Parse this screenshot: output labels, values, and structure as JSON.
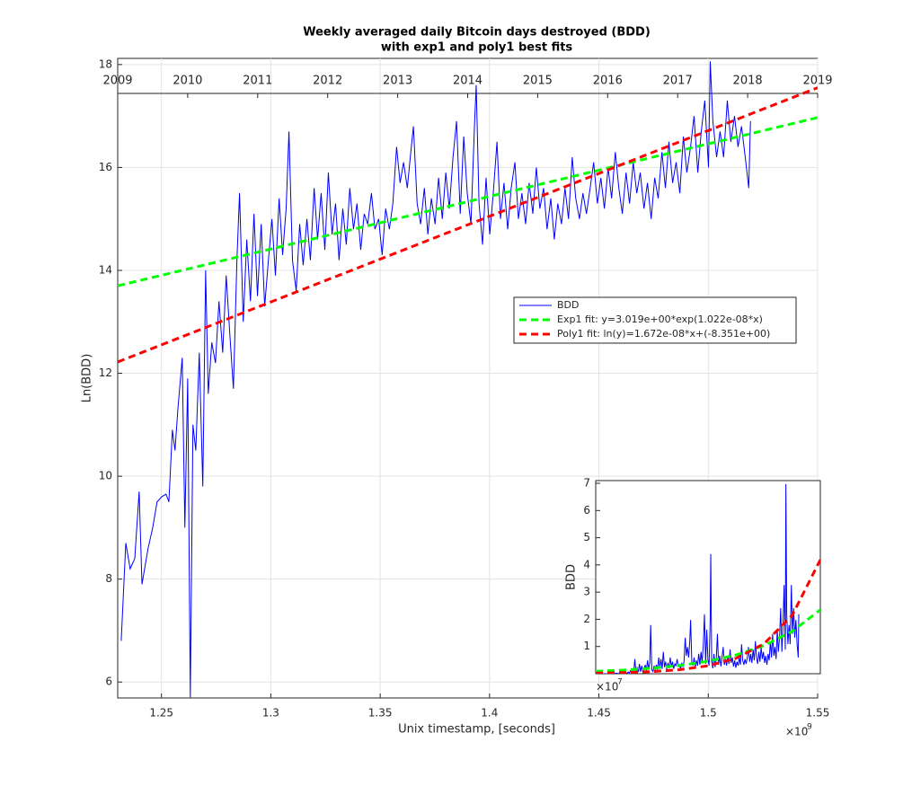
{
  "chart_data": [
    {
      "type": "line",
      "title": [
        "Weekly averaged daily Bitcoin days destroyed (BDD)",
        "with exp1 and poly1 best fits"
      ],
      "xlabel": "Unix timestamp, [seconds]",
      "ylabel": "Ln(BDD)",
      "x_multiplier": {
        "base": "×10",
        "exponent": "9"
      },
      "xlim": [
        1.23,
        1.55
      ],
      "xticks": [
        1.25,
        1.3,
        1.35,
        1.4,
        1.45,
        1.5,
        1.55
      ],
      "ylim": [
        5.69,
        18.12
      ],
      "yticks": [
        6,
        8,
        10,
        12,
        14,
        16,
        18
      ],
      "grid": true,
      "legend": "east",
      "top_axis": {
        "xlim": [
          2009,
          2019
        ],
        "xticks": [
          2009,
          2010,
          2011,
          2012,
          2013,
          2014,
          2015,
          2016,
          2017,
          2018,
          2019
        ]
      },
      "series": [
        {
          "name": "BDD",
          "color": "#0000ff",
          "dash": "solid",
          "x": [
            1.2316,
            1.2337,
            1.2357,
            1.2378,
            1.2398,
            1.2411,
            1.2439,
            1.246,
            1.248,
            1.2501,
            1.2521,
            1.2534,
            1.255,
            1.2562,
            1.2575,
            1.2595,
            1.2607,
            1.262,
            1.2632,
            1.2644,
            1.2657,
            1.2673,
            1.2689,
            1.2702,
            1.2714,
            1.273,
            1.2747,
            1.2763,
            1.278,
            1.2796,
            1.2812,
            1.2829,
            1.2845,
            1.2857,
            1.2874,
            1.289,
            1.2907,
            1.2923,
            1.2939,
            1.2956,
            1.2972,
            1.2989,
            1.3005,
            1.3021,
            1.3038,
            1.3054,
            1.307,
            1.3083,
            1.3099,
            1.3116,
            1.3132,
            1.3148,
            1.3165,
            1.3181,
            1.3198,
            1.3214,
            1.323,
            1.3247,
            1.3263,
            1.328,
            1.3296,
            1.3312,
            1.3329,
            1.3345,
            1.3361,
            1.3378,
            1.3394,
            1.3411,
            1.3427,
            1.3443,
            1.346,
            1.3476,
            1.3493,
            1.3509,
            1.3525,
            1.3542,
            1.3558,
            1.3575,
            1.3591,
            1.3607,
            1.3624,
            1.364,
            1.3652,
            1.3669,
            1.3685,
            1.3702,
            1.3718,
            1.3734,
            1.3751,
            1.3767,
            1.3784,
            1.38,
            1.3816,
            1.3833,
            1.3849,
            1.3866,
            1.3882,
            1.3898,
            1.3915,
            1.3931,
            1.3939,
            1.3952,
            1.3968,
            1.3984,
            1.4001,
            1.4017,
            1.4034,
            1.405,
            1.4066,
            1.4083,
            1.4099,
            1.4116,
            1.4132,
            1.4148,
            1.4165,
            1.4181,
            1.4198,
            1.4214,
            1.423,
            1.4247,
            1.4263,
            1.428,
            1.4296,
            1.4312,
            1.4329,
            1.4345,
            1.4361,
            1.4378,
            1.4394,
            1.4411,
            1.4427,
            1.4443,
            1.446,
            1.4476,
            1.4493,
            1.4509,
            1.4525,
            1.4542,
            1.4558,
            1.4575,
            1.4591,
            1.4607,
            1.4624,
            1.464,
            1.4657,
            1.4673,
            1.4689,
            1.4706,
            1.4722,
            1.4739,
            1.4755,
            1.4771,
            1.4788,
            1.4804,
            1.482,
            1.4837,
            1.4853,
            1.487,
            1.4886,
            1.4902,
            1.4919,
            1.4935,
            1.4952,
            1.4968,
            1.4984,
            1.5001,
            1.5009,
            1.5021,
            1.5038,
            1.5054,
            1.507,
            1.5087,
            1.5103,
            1.512,
            1.5136,
            1.5152,
            1.5169,
            1.5185,
            1.5193
          ],
          "values": [
            6.8,
            8.7,
            8.2,
            8.4,
            9.7,
            7.9,
            8.6,
            9.0,
            9.5,
            9.6,
            9.65,
            9.5,
            10.9,
            10.5,
            11.3,
            12.3,
            9.0,
            11.9,
            5.7,
            11.0,
            10.5,
            12.4,
            9.8,
            14.0,
            11.6,
            12.6,
            12.2,
            13.4,
            12.4,
            13.9,
            12.8,
            11.7,
            14.2,
            15.5,
            13.0,
            14.6,
            13.4,
            15.1,
            13.5,
            14.9,
            13.3,
            14.2,
            15.0,
            13.9,
            15.4,
            14.3,
            15.2,
            16.7,
            14.2,
            13.6,
            14.9,
            14.1,
            15.0,
            14.2,
            15.6,
            14.6,
            15.5,
            14.4,
            15.9,
            14.7,
            15.3,
            14.2,
            15.2,
            14.5,
            15.6,
            14.8,
            15.3,
            14.4,
            15.1,
            14.9,
            15.5,
            14.8,
            15.0,
            14.3,
            15.2,
            14.8,
            15.3,
            16.4,
            15.7,
            16.1,
            15.6,
            16.3,
            16.8,
            15.3,
            14.9,
            15.6,
            14.7,
            15.4,
            14.9,
            15.8,
            15.0,
            15.9,
            15.2,
            16.2,
            16.9,
            15.1,
            16.6,
            15.5,
            14.9,
            16.8,
            17.6,
            15.3,
            14.5,
            15.8,
            14.7,
            15.5,
            16.5,
            15.0,
            15.7,
            14.8,
            15.6,
            16.1,
            15.0,
            15.5,
            14.9,
            15.7,
            15.1,
            16.0,
            15.2,
            15.6,
            14.8,
            15.4,
            14.6,
            15.3,
            14.9,
            15.6,
            15.0,
            16.2,
            15.4,
            15.0,
            15.5,
            15.1,
            15.6,
            16.1,
            15.3,
            15.8,
            15.2,
            16.0,
            15.4,
            16.3,
            15.6,
            15.1,
            15.9,
            15.3,
            16.1,
            15.5,
            15.9,
            15.2,
            15.7,
            15.0,
            15.8,
            15.4,
            16.3,
            15.6,
            16.5,
            15.7,
            16.1,
            15.5,
            16.6,
            15.9,
            16.4,
            17.0,
            15.9,
            16.7,
            17.3,
            16.0,
            18.06,
            16.9,
            16.2,
            16.7,
            16.2,
            17.3,
            16.5,
            17.0,
            16.4,
            16.8,
            16.2,
            15.6,
            16.9
          ]
        },
        {
          "name": "Exp1 fit: y=3.019e+00*exp(1.022e-08*x)",
          "color": "#00ff00",
          "dash": "dashed",
          "x": [
            1.23,
            1.55
          ],
          "values": [
            13.7,
            16.97
          ]
        },
        {
          "name": "Poly1 fit: ln(y)=1.672e-08*x+(-8.351e+00)",
          "color": "#ff0000",
          "dash": "dashed",
          "x": [
            1.23,
            1.55
          ],
          "values": [
            12.22,
            17.55
          ]
        }
      ]
    },
    {
      "type": "line",
      "ylabel": "BDD",
      "y_multiplier": {
        "base": "×10",
        "exponent": "7"
      },
      "xlim": [
        1.23,
        1.55
      ],
      "ylim": [
        0,
        7.1
      ],
      "yticks": [
        1,
        2,
        3,
        4,
        5,
        6,
        7
      ],
      "grid": false,
      "series": [
        {
          "color": "#0000ff",
          "dash": "solid",
          "x": [
            1.2316,
            1.2337,
            1.2357,
            1.2378,
            1.2398,
            1.2411,
            1.2439,
            1.246,
            1.248,
            1.2501,
            1.2521,
            1.2534,
            1.255,
            1.2562,
            1.2575,
            1.2595,
            1.2607,
            1.262,
            1.2632,
            1.2644,
            1.2657,
            1.2673,
            1.2689,
            1.2702,
            1.2714,
            1.273,
            1.2747,
            1.2763,
            1.278,
            1.2796,
            1.2812,
            1.2829,
            1.2845,
            1.2857,
            1.2874,
            1.289,
            1.2907,
            1.2923,
            1.2939,
            1.2956,
            1.2972,
            1.2989,
            1.3005,
            1.3021,
            1.3038,
            1.3054,
            1.307,
            1.3083,
            1.3099,
            1.3116,
            1.3132,
            1.3148,
            1.3165,
            1.3181,
            1.3198,
            1.3214,
            1.323,
            1.3247,
            1.3263,
            1.328,
            1.3296,
            1.3312,
            1.3329,
            1.3345,
            1.3361,
            1.3378,
            1.3394,
            1.3411,
            1.3427,
            1.3443,
            1.346,
            1.3476,
            1.3493,
            1.3509,
            1.3525,
            1.3542,
            1.3558,
            1.3575,
            1.3591,
            1.3607,
            1.3624,
            1.364,
            1.3652,
            1.3669,
            1.3685,
            1.3702,
            1.3718,
            1.3734,
            1.3751,
            1.3767,
            1.3784,
            1.38,
            1.3816,
            1.3833,
            1.3849,
            1.3866,
            1.3882,
            1.3898,
            1.3915,
            1.3931,
            1.3939,
            1.3952,
            1.3968,
            1.3984,
            1.4001,
            1.4017,
            1.4034,
            1.405,
            1.4066,
            1.4083,
            1.4099,
            1.4116,
            1.4132,
            1.4148,
            1.4165,
            1.4181,
            1.4198,
            1.4214,
            1.423,
            1.4247,
            1.4263,
            1.428,
            1.4296,
            1.4312,
            1.4329,
            1.4345,
            1.4361,
            1.4378,
            1.4394,
            1.4411,
            1.4427,
            1.4443,
            1.446,
            1.4476,
            1.4493,
            1.4509,
            1.4525,
            1.4542,
            1.4558,
            1.4575,
            1.4591,
            1.4607,
            1.4624,
            1.464,
            1.4657,
            1.4673,
            1.4689,
            1.4706,
            1.4722,
            1.4739,
            1.4755,
            1.4771,
            1.4788,
            1.4804,
            1.482,
            1.4837,
            1.4853,
            1.487,
            1.4886,
            1.4902,
            1.4919,
            1.4935,
            1.4952,
            1.4968,
            1.4984,
            1.5001,
            1.5009,
            1.5021,
            1.5038,
            1.5054,
            1.507,
            1.5087,
            1.5103,
            1.512,
            1.5136,
            1.5152,
            1.5169,
            1.5185,
            1.5193
          ],
          "values": [
            0.0,
            0.001,
            0.0,
            0.0,
            0.002,
            0.0,
            0.001,
            0.001,
            0.001,
            0.001,
            0.002,
            0.001,
            0.005,
            0.004,
            0.008,
            0.022,
            0.001,
            0.015,
            0.0,
            0.006,
            0.004,
            0.024,
            0.002,
            0.12,
            0.011,
            0.03,
            0.02,
            0.066,
            0.024,
            0.109,
            0.036,
            0.012,
            0.147,
            0.539,
            0.044,
            0.219,
            0.066,
            0.361,
            0.073,
            0.296,
            0.06,
            0.147,
            0.327,
            0.109,
            0.488,
            0.162,
            0.399,
            1.79,
            0.147,
            0.081,
            0.296,
            0.133,
            0.327,
            0.147,
            0.596,
            0.219,
            0.539,
            0.179,
            0.804,
            0.242,
            0.441,
            0.147,
            0.399,
            0.198,
            0.596,
            0.268,
            0.441,
            0.179,
            0.361,
            0.296,
            0.539,
            0.268,
            0.327,
            0.162,
            0.399,
            0.268,
            0.441,
            1.326,
            0.658,
            0.982,
            0.596,
            1.2,
            1.978,
            0.441,
            0.296,
            0.596,
            0.242,
            0.488,
            0.296,
            0.728,
            0.327,
            0.804,
            0.399,
            1.085,
            2.186,
            0.361,
            1.619,
            0.539,
            0.296,
            1.978,
            4.401,
            0.441,
            0.198,
            0.728,
            0.242,
            0.539,
            1.465,
            0.327,
            0.658,
            0.268,
            0.596,
            0.982,
            0.327,
            0.539,
            0.296,
            0.658,
            0.361,
            0.889,
            0.399,
            0.596,
            0.268,
            0.488,
            0.219,
            0.441,
            0.296,
            0.596,
            0.327,
            1.085,
            0.488,
            0.327,
            0.539,
            0.361,
            0.596,
            0.982,
            0.441,
            0.728,
            0.399,
            0.889,
            0.488,
            1.2,
            0.596,
            0.361,
            0.804,
            0.441,
            0.982,
            0.539,
            0.804,
            0.399,
            0.658,
            0.327,
            0.728,
            0.488,
            1.2,
            0.596,
            1.465,
            0.658,
            0.982,
            0.539,
            1.619,
            0.804,
            1.326,
            2.416,
            0.804,
            1.79,
            3.261,
            0.889,
            6.97,
            2.186,
            1.085,
            1.79,
            1.085,
            3.261,
            1.465,
            2.416,
            1.326,
            1.978,
            1.085,
            0.596,
            2.186
          ]
        },
        {
          "color": "#00ff00",
          "dash": "dashed",
          "x": [
            1.23,
            1.27,
            1.31,
            1.35,
            1.39,
            1.43,
            1.47,
            1.51,
            1.55
          ],
          "values": [
            0.089,
            0.134,
            0.202,
            0.304,
            0.458,
            0.689,
            1.037,
            1.56,
            2.35
          ]
        },
        {
          "color": "#ff0000",
          "dash": "dashed",
          "x": [
            1.23,
            1.27,
            1.31,
            1.35,
            1.39,
            1.43,
            1.47,
            1.51,
            1.55
          ],
          "values": [
            0.02,
            0.04,
            0.077,
            0.15,
            0.292,
            0.568,
            1.105,
            2.15,
            4.19
          ]
        }
      ]
    }
  ]
}
